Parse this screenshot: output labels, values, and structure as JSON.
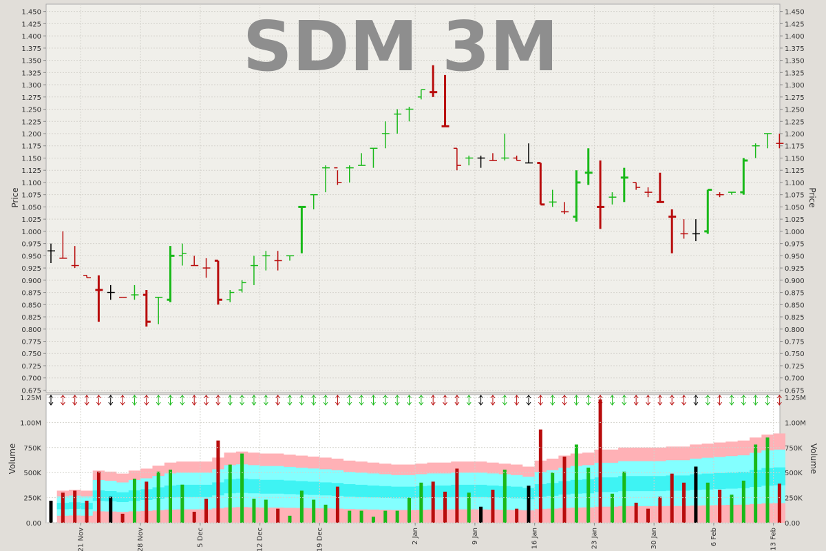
{
  "chart_data": [
    {
      "type": "ohlc",
      "title": "SDM 3M",
      "ylabel": "Price",
      "ylim": [
        0.67,
        1.465
      ],
      "grid": true,
      "colors": {
        "up": "#19b919",
        "down": "#b80c0c",
        "unchanged": "#000000",
        "watermark": "#8e8e8e"
      },
      "y_ticks": [
        "0.675",
        "0.700",
        "0.725",
        "0.750",
        "0.775",
        "0.800",
        "0.825",
        "0.850",
        "0.875",
        "0.900",
        "0.925",
        "0.950",
        "0.975",
        "1.000",
        "1.025",
        "1.050",
        "1.075",
        "1.100",
        "1.125",
        "1.150",
        "1.175",
        "1.200",
        "1.225",
        "1.250",
        "1.275",
        "1.300",
        "1.325",
        "1.350",
        "1.375",
        "1.400",
        "1.425",
        "1.450"
      ],
      "x_ticks": [
        "21 Nov",
        "28 Nov",
        "5 Dec",
        "12 Dec",
        "19 Dec",
        "2 Jan",
        "9 Jan",
        "16 Jan",
        "23 Jan",
        "30 Jan",
        "6 Feb",
        "13 Feb"
      ],
      "x_tick_positions": [
        2.5,
        7.5,
        12.5,
        17.5,
        22.5,
        30.5,
        35.5,
        40.5,
        45.5,
        50.5,
        55.5,
        60.5
      ],
      "bars": [
        {
          "o": 0.96,
          "h": 0.975,
          "l": 0.935,
          "c": 0.96,
          "d": "n"
        },
        {
          "o": 0.945,
          "h": 1.0,
          "l": 0.945,
          "c": 0.945,
          "d": "d"
        },
        {
          "o": 0.93,
          "h": 0.97,
          "l": 0.925,
          "c": 0.93,
          "d": "d"
        },
        {
          "o": 0.91,
          "h": 0.91,
          "l": 0.905,
          "c": 0.905,
          "d": "d"
        },
        {
          "o": 0.88,
          "h": 0.91,
          "l": 0.815,
          "c": 0.88,
          "d": "d"
        },
        {
          "o": 0.875,
          "h": 0.89,
          "l": 0.86,
          "c": 0.875,
          "d": "n"
        },
        {
          "o": 0.865,
          "h": 0.865,
          "l": 0.865,
          "c": 0.865,
          "d": "d"
        },
        {
          "o": 0.87,
          "h": 0.89,
          "l": 0.86,
          "c": 0.87,
          "d": "u"
        },
        {
          "o": 0.87,
          "h": 0.88,
          "l": 0.805,
          "c": 0.815,
          "d": "d"
        },
        {
          "o": 0.865,
          "h": 0.865,
          "l": 0.81,
          "c": 0.865,
          "d": "u"
        },
        {
          "o": 0.86,
          "h": 0.97,
          "l": 0.855,
          "c": 0.95,
          "d": "u"
        },
        {
          "o": 0.95,
          "h": 0.975,
          "l": 0.93,
          "c": 0.955,
          "d": "u"
        },
        {
          "o": 0.93,
          "h": 0.95,
          "l": 0.93,
          "c": 0.93,
          "d": "d"
        },
        {
          "o": 0.925,
          "h": 0.945,
          "l": 0.905,
          "c": 0.925,
          "d": "d"
        },
        {
          "o": 0.94,
          "h": 0.94,
          "l": 0.85,
          "c": 0.86,
          "d": "d"
        },
        {
          "o": 0.86,
          "h": 0.88,
          "l": 0.855,
          "c": 0.875,
          "d": "u"
        },
        {
          "o": 0.88,
          "h": 0.9,
          "l": 0.875,
          "c": 0.895,
          "d": "u"
        },
        {
          "o": 0.93,
          "h": 0.95,
          "l": 0.89,
          "c": 0.93,
          "d": "u"
        },
        {
          "o": 0.95,
          "h": 0.96,
          "l": 0.92,
          "c": 0.95,
          "d": "u"
        },
        {
          "o": 0.94,
          "h": 0.96,
          "l": 0.92,
          "c": 0.94,
          "d": "d"
        },
        {
          "o": 0.95,
          "h": 0.95,
          "l": 0.94,
          "c": 0.95,
          "d": "u"
        },
        {
          "o": 1.05,
          "h": 1.05,
          "l": 0.955,
          "c": 1.05,
          "d": "u"
        },
        {
          "o": 1.075,
          "h": 1.075,
          "l": 1.045,
          "c": 1.075,
          "d": "u"
        },
        {
          "o": 1.13,
          "h": 1.135,
          "l": 1.08,
          "c": 1.13,
          "d": "u"
        },
        {
          "o": 1.13,
          "h": 1.125,
          "l": 1.095,
          "c": 1.1,
          "d": "d"
        },
        {
          "o": 1.13,
          "h": 1.135,
          "l": 1.1,
          "c": 1.13,
          "d": "u"
        },
        {
          "o": 1.135,
          "h": 1.16,
          "l": 1.135,
          "c": 1.135,
          "d": "u"
        },
        {
          "o": 1.17,
          "h": 1.17,
          "l": 1.13,
          "c": 1.17,
          "d": "u"
        },
        {
          "o": 1.2,
          "h": 1.225,
          "l": 1.17,
          "c": 1.2,
          "d": "u"
        },
        {
          "o": 1.24,
          "h": 1.25,
          "l": 1.2,
          "c": 1.24,
          "d": "u"
        },
        {
          "o": 1.25,
          "h": 1.255,
          "l": 1.225,
          "c": 1.25,
          "d": "u"
        },
        {
          "o": 1.275,
          "h": 1.29,
          "l": 1.27,
          "c": 1.29,
          "d": "u"
        },
        {
          "o": 1.285,
          "h": 1.34,
          "l": 1.275,
          "c": 1.285,
          "d": "d"
        },
        {
          "o": 1.215,
          "h": 1.32,
          "l": 1.215,
          "c": 1.215,
          "d": "d"
        },
        {
          "o": 1.17,
          "h": 1.17,
          "l": 1.125,
          "c": 1.135,
          "d": "d"
        },
        {
          "o": 1.15,
          "h": 1.155,
          "l": 1.135,
          "c": 1.15,
          "d": "u"
        },
        {
          "o": 1.15,
          "h": 1.155,
          "l": 1.13,
          "c": 1.15,
          "d": "n"
        },
        {
          "o": 1.145,
          "h": 1.16,
          "l": 1.145,
          "c": 1.145,
          "d": "d"
        },
        {
          "o": 1.15,
          "h": 1.2,
          "l": 1.145,
          "c": 1.15,
          "d": "u"
        },
        {
          "o": 1.15,
          "h": 1.155,
          "l": 1.145,
          "c": 1.145,
          "d": "d"
        },
        {
          "o": 1.14,
          "h": 1.18,
          "l": 1.14,
          "c": 1.14,
          "d": "n"
        },
        {
          "o": 1.14,
          "h": 1.14,
          "l": 1.055,
          "c": 1.055,
          "d": "d"
        },
        {
          "o": 1.06,
          "h": 1.085,
          "l": 1.05,
          "c": 1.06,
          "d": "u"
        },
        {
          "o": 1.04,
          "h": 1.06,
          "l": 1.035,
          "c": 1.04,
          "d": "d"
        },
        {
          "o": 1.03,
          "h": 1.125,
          "l": 1.02,
          "c": 1.1,
          "d": "u"
        },
        {
          "o": 1.12,
          "h": 1.17,
          "l": 1.095,
          "c": 1.12,
          "d": "u"
        },
        {
          "o": 1.05,
          "h": 1.145,
          "l": 1.005,
          "c": 1.05,
          "d": "d"
        },
        {
          "o": 1.07,
          "h": 1.08,
          "l": 1.055,
          "c": 1.07,
          "d": "u"
        },
        {
          "o": 1.11,
          "h": 1.13,
          "l": 1.06,
          "c": 1.11,
          "d": "u"
        },
        {
          "o": 1.1,
          "h": 1.1,
          "l": 1.085,
          "c": 1.09,
          "d": "d"
        },
        {
          "o": 1.08,
          "h": 1.09,
          "l": 1.07,
          "c": 1.08,
          "d": "d"
        },
        {
          "o": 1.06,
          "h": 1.12,
          "l": 1.06,
          "c": 1.06,
          "d": "d"
        },
        {
          "o": 1.03,
          "h": 1.045,
          "l": 0.955,
          "c": 1.03,
          "d": "d"
        },
        {
          "o": 0.995,
          "h": 1.025,
          "l": 0.985,
          "c": 0.995,
          "d": "d"
        },
        {
          "o": 0.995,
          "h": 1.025,
          "l": 0.98,
          "c": 0.995,
          "d": "n"
        },
        {
          "o": 1.0,
          "h": 1.085,
          "l": 0.995,
          "c": 1.085,
          "d": "u"
        },
        {
          "o": 1.075,
          "h": 1.08,
          "l": 1.07,
          "c": 1.075,
          "d": "d"
        },
        {
          "o": 1.08,
          "h": 1.08,
          "l": 1.075,
          "c": 1.08,
          "d": "u"
        },
        {
          "o": 1.08,
          "h": 1.15,
          "l": 1.075,
          "c": 1.145,
          "d": "u"
        },
        {
          "o": 1.175,
          "h": 1.18,
          "l": 1.15,
          "c": 1.175,
          "d": "u"
        },
        {
          "o": 1.2,
          "h": 1.2,
          "l": 1.17,
          "c": 1.2,
          "d": "u"
        },
        {
          "o": 1.18,
          "h": 1.2,
          "l": 1.17,
          "c": 1.18,
          "d": "d"
        }
      ]
    },
    {
      "type": "bar",
      "ylabel": "Volume",
      "ylim": [
        0,
        1250000
      ],
      "y_ticks": [
        "0.00",
        "250K",
        "500K",
        "750K",
        "1.00M",
        "1.25M"
      ],
      "y_tick_values": [
        0,
        250000,
        500000,
        750000,
        1000000,
        1250000
      ],
      "volumes": [
        220000,
        300000,
        320000,
        220000,
        510000,
        260000,
        90000,
        440000,
        410000,
        510000,
        530000,
        380000,
        110000,
        240000,
        820000,
        580000,
        690000,
        240000,
        230000,
        140000,
        70000,
        320000,
        230000,
        180000,
        360000,
        120000,
        120000,
        60000,
        120000,
        120000,
        250000,
        400000,
        410000,
        310000,
        540000,
        300000,
        160000,
        330000,
        530000,
        140000,
        370000,
        930000,
        500000,
        660000,
        780000,
        550000,
        1230000,
        290000,
        510000,
        200000,
        140000,
        260000,
        490000,
        400000,
        560000,
        400000,
        330000,
        280000,
        420000,
        780000,
        850000,
        390000
      ],
      "average": [
        null,
        320000,
        330000,
        320000,
        520000,
        510000,
        490000,
        520000,
        540000,
        570000,
        600000,
        610000,
        610000,
        610000,
        650000,
        700000,
        710000,
        700000,
        690000,
        690000,
        680000,
        670000,
        660000,
        650000,
        640000,
        620000,
        610000,
        600000,
        590000,
        580000,
        580000,
        590000,
        600000,
        600000,
        610000,
        610000,
        610000,
        600000,
        590000,
        580000,
        560000,
        620000,
        640000,
        670000,
        690000,
        700000,
        730000,
        730000,
        750000,
        750000,
        750000,
        750000,
        760000,
        760000,
        780000,
        790000,
        800000,
        810000,
        820000,
        850000,
        880000,
        890000
      ]
    }
  ]
}
